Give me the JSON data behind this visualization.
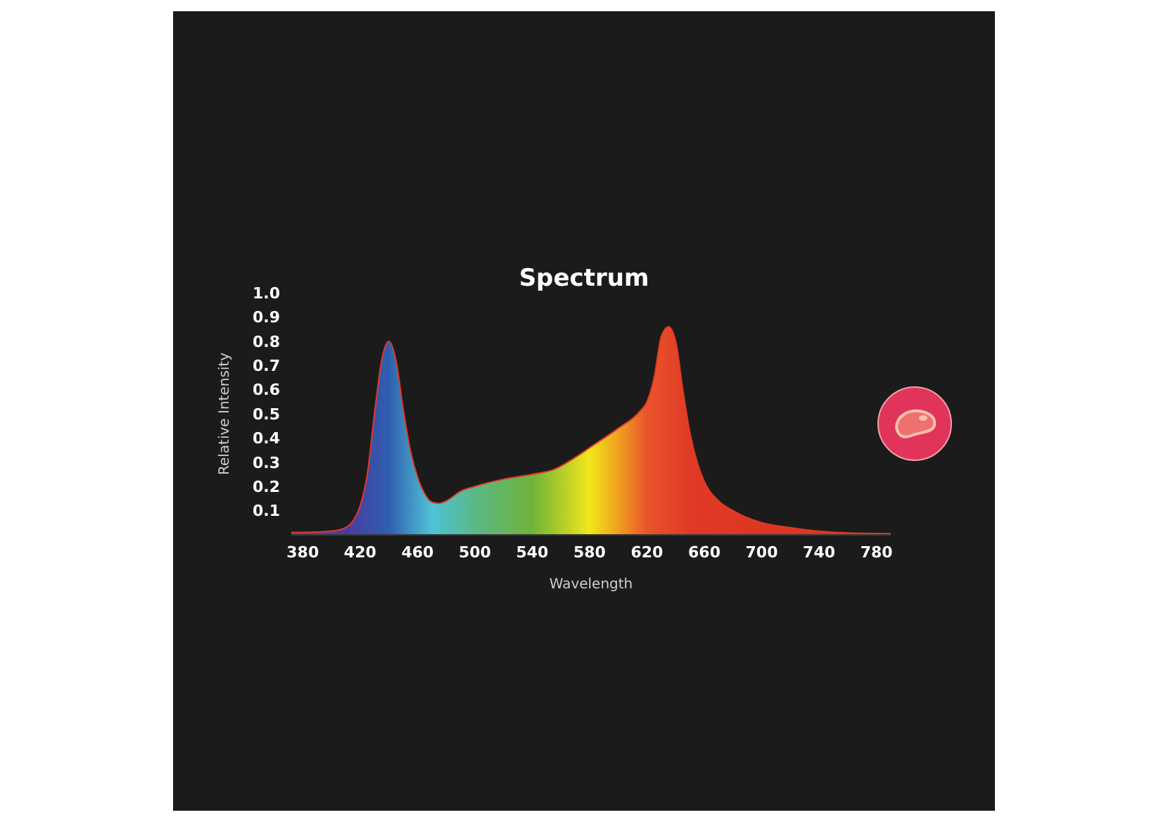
{
  "chart_data": {
    "type": "area",
    "title": "Spectrum",
    "xlabel": "Wavelength",
    "ylabel": "Relative Intensity",
    "x": [
      372,
      380,
      400,
      410,
      420,
      425,
      430,
      435,
      440,
      445,
      450,
      455,
      460,
      465,
      470,
      475,
      480,
      490,
      500,
      520,
      540,
      555,
      570,
      580,
      600,
      615,
      620,
      625,
      630,
      635,
      640,
      645,
      650,
      655,
      660,
      670,
      680,
      700,
      720,
      740,
      760,
      790
    ],
    "values": [
      0.01,
      0.01,
      0.015,
      0.03,
      0.12,
      0.25,
      0.5,
      0.72,
      0.8,
      0.72,
      0.52,
      0.35,
      0.24,
      0.17,
      0.135,
      0.13,
      0.14,
      0.18,
      0.2,
      0.23,
      0.25,
      0.27,
      0.32,
      0.36,
      0.44,
      0.51,
      0.55,
      0.65,
      0.82,
      0.86,
      0.8,
      0.6,
      0.42,
      0.3,
      0.22,
      0.14,
      0.1,
      0.05,
      0.03,
      0.015,
      0.008,
      0.005
    ],
    "color": "#e03a26",
    "xlim": [
      372,
      790
    ],
    "xticks": [
      380,
      420,
      460,
      500,
      540,
      580,
      620,
      660,
      700,
      740,
      780
    ],
    "ylim": [
      0,
      1
    ],
    "yticks": [
      0.1,
      0.2,
      0.3,
      0.4,
      0.5,
      0.6,
      0.7,
      0.8,
      0.9,
      {
        "value": 1,
        "label": "1.0"
      }
    ]
  }
}
